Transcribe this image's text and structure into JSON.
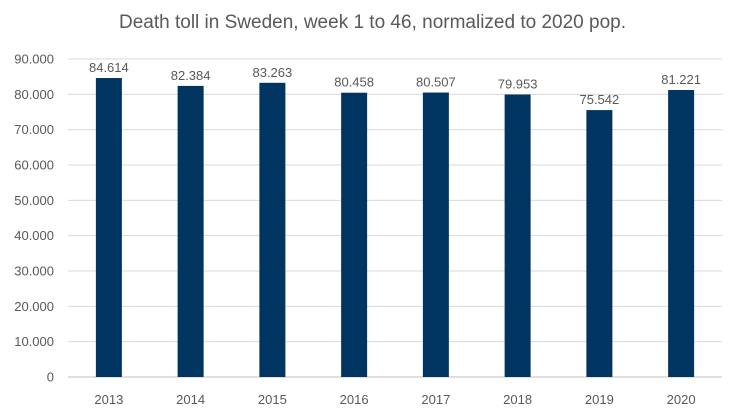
{
  "chart_data": {
    "type": "bar",
    "title": "Death toll in Sweden, week 1 to 46, normalized to 2020 pop.",
    "categories": [
      "2013",
      "2014",
      "2015",
      "2016",
      "2017",
      "2018",
      "2019",
      "2020"
    ],
    "values": [
      84614,
      82384,
      83263,
      80458,
      80507,
      79953,
      75542,
      81221
    ],
    "data_labels": [
      "84.614",
      "82.384",
      "83.263",
      "80.458",
      "80.507",
      "79.953",
      "75.542",
      "81.221"
    ],
    "ylim": [
      0,
      90000
    ],
    "yticks": [
      0,
      10000,
      20000,
      30000,
      40000,
      50000,
      60000,
      70000,
      80000,
      90000
    ],
    "ytick_labels": [
      "0",
      "10.000",
      "20.000",
      "30.000",
      "40.000",
      "50.000",
      "60.000",
      "70.000",
      "80.000",
      "90.000"
    ],
    "xlabel": "",
    "ylabel": "",
    "grid": true,
    "bar_color": "#003561",
    "grid_color": "#d9d9d9",
    "text_color": "#595959"
  }
}
